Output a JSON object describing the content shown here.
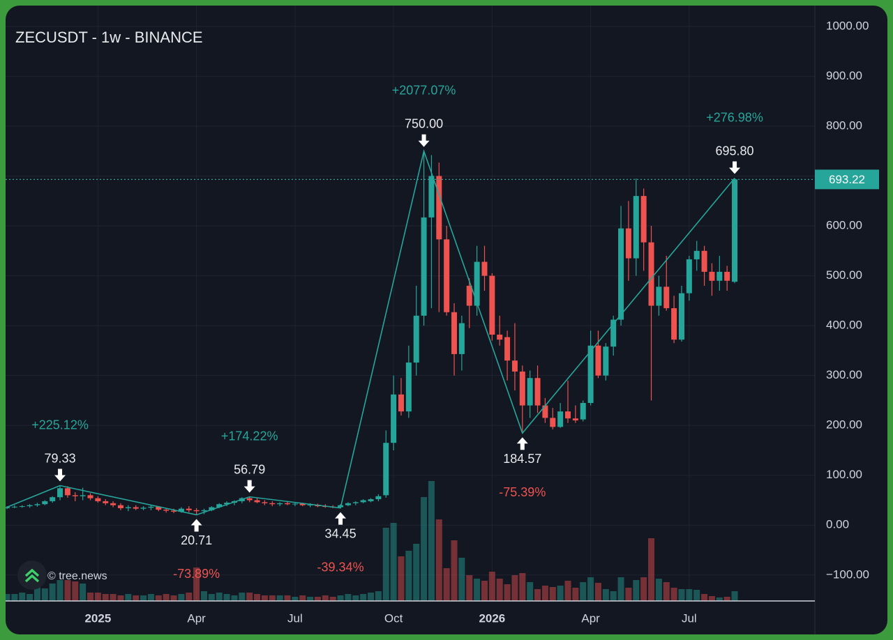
{
  "chart_data": {
    "type": "candlestick",
    "title": "ZECUSDT - 1w - BINANCE",
    "watermark": "© tree.news",
    "categories": [
      null,
      null,
      null,
      null,
      null,
      null,
      null,
      null,
      null,
      null,
      null,
      null,
      "2025",
      null,
      null,
      null,
      null,
      null,
      null,
      null,
      null,
      null,
      null,
      null,
      null,
      "Apr",
      null,
      null,
      null,
      null,
      null,
      null,
      null,
      null,
      null,
      null,
      null,
      null,
      "Jul",
      null,
      null,
      null,
      null,
      null,
      null,
      null,
      null,
      null,
      null,
      null,
      null,
      "Oct",
      null,
      null,
      null,
      null,
      null,
      null,
      null,
      null,
      null,
      null,
      null,
      null,
      "2026",
      null,
      null,
      null,
      null,
      null,
      null,
      null,
      null,
      null,
      null,
      null,
      null,
      "Apr",
      null,
      null,
      null,
      null,
      null,
      null,
      null,
      null,
      null,
      null,
      null,
      null,
      "Jul",
      null,
      null,
      null,
      null,
      null,
      null
    ],
    "open": [
      34,
      36,
      37,
      38,
      40,
      42,
      48,
      56,
      74,
      60,
      58,
      60,
      54,
      48,
      44,
      40,
      34,
      36,
      33,
      35,
      37,
      31,
      29,
      27,
      33,
      30,
      28,
      30,
      36,
      42,
      45,
      48,
      54,
      50,
      46,
      44,
      42,
      44,
      42,
      43,
      40,
      41,
      38,
      37,
      36,
      40,
      44,
      46,
      48,
      52,
      60,
      165,
      262,
      228,
      326,
      420,
      617,
      700,
      573,
      427,
      343,
      480,
      440,
      528,
      500,
      382,
      377,
      330,
      308,
      240,
      295,
      240,
      215,
      197,
      228,
      214,
      212,
      245,
      360,
      300,
      358,
      412,
      595,
      535,
      660,
      567,
      440,
      478,
      435,
      372,
      465,
      533,
      550,
      508,
      490,
      508,
      488
    ],
    "high": [
      38,
      40,
      40,
      42,
      45,
      50,
      58,
      79.33,
      78,
      66,
      75,
      64,
      58,
      52,
      48,
      44,
      40,
      40,
      38,
      40,
      38,
      34,
      33,
      36,
      38,
      34,
      33,
      38,
      44,
      48,
      50,
      56,
      56.79,
      54,
      50,
      48,
      46,
      47,
      45,
      45,
      44,
      43,
      42,
      40,
      42,
      46,
      48,
      52,
      54,
      62,
      190,
      300,
      295,
      360,
      480,
      750,
      742,
      727,
      600,
      445,
      420,
      495,
      560,
      560,
      505,
      420,
      390,
      405,
      320,
      310,
      320,
      255,
      235,
      245,
      290,
      240,
      250,
      390,
      390,
      365,
      420,
      640,
      650,
      695,
      675,
      600,
      500,
      540,
      460,
      480,
      540,
      570,
      560,
      525,
      540,
      520,
      695.8
    ],
    "low": [
      32,
      34,
      35,
      35,
      37,
      40,
      45,
      50,
      55,
      48,
      50,
      50,
      45,
      40,
      36,
      30,
      28,
      30,
      30,
      30,
      28,
      25,
      24,
      25,
      26,
      20.71,
      22,
      28,
      34,
      38,
      40,
      44,
      46,
      44,
      40,
      38,
      38,
      40,
      38,
      38,
      36,
      36,
      35,
      34,
      34.45,
      38,
      40,
      44,
      46,
      48,
      55,
      150,
      220,
      215,
      300,
      400,
      435,
      427,
      420,
      300,
      310,
      395,
      420,
      470,
      370,
      360,
      290,
      270,
      184.57,
      215,
      225,
      205,
      192,
      195,
      205,
      205,
      208,
      240,
      295,
      290,
      340,
      400,
      490,
      500,
      510,
      250,
      420,
      430,
      365,
      368,
      450,
      510,
      480,
      460,
      470,
      470,
      485
    ],
    "close": [
      36,
      37,
      38,
      40,
      42,
      48,
      56,
      74,
      60,
      58,
      60,
      54,
      48,
      44,
      40,
      34,
      36,
      33,
      35,
      37,
      31,
      29,
      27,
      33,
      30,
      28,
      30,
      36,
      42,
      45,
      48,
      54,
      50,
      46,
      44,
      42,
      44,
      42,
      43,
      40,
      41,
      38,
      37,
      36,
      40,
      44,
      46,
      50,
      52,
      58,
      165,
      262,
      228,
      326,
      420,
      617,
      700,
      573,
      427,
      343,
      405,
      440,
      528,
      500,
      382,
      372,
      330,
      308,
      240,
      295,
      240,
      215,
      197,
      228,
      214,
      210,
      245,
      360,
      300,
      358,
      412,
      595,
      535,
      660,
      567,
      440,
      478,
      435,
      372,
      465,
      533,
      550,
      508,
      490,
      508,
      490,
      693.22
    ],
    "volume": [
      10,
      10,
      12,
      10,
      20,
      18,
      25,
      30,
      30,
      28,
      25,
      12,
      12,
      10,
      10,
      8,
      10,
      8,
      8,
      10,
      8,
      10,
      8,
      10,
      12,
      48,
      14,
      10,
      12,
      10,
      8,
      12,
      12,
      10,
      8,
      8,
      8,
      8,
      6,
      8,
      6,
      6,
      8,
      6,
      8,
      10,
      8,
      10,
      12,
      14,
      105,
      112,
      64,
      72,
      82,
      149,
      172,
      117,
      47,
      87,
      62,
      37,
      32,
      29,
      42,
      32,
      24,
      37,
      40,
      27,
      17,
      22,
      20,
      22,
      29,
      19,
      27,
      34,
      26,
      17,
      14,
      34,
      19,
      30,
      34,
      90,
      32,
      27,
      19,
      17,
      17,
      16,
      10,
      7,
      5,
      6,
      14
    ],
    "up_color": "#26a69a",
    "down_color": "#ef5350",
    "ylim": [
      -152,
      1032
    ],
    "yticks": [
      {
        "value": -100,
        "label": "−100.00"
      },
      {
        "value": 0,
        "label": "0.00"
      },
      {
        "value": 100,
        "label": "100.00"
      },
      {
        "value": 200,
        "label": "200.00"
      },
      {
        "value": 300,
        "label": "300.00"
      },
      {
        "value": 400,
        "label": "400.00"
      },
      {
        "value": 500,
        "label": "500.00"
      },
      {
        "value": 600,
        "label": "600.00"
      },
      {
        "value": 700,
        "label": "700.00"
      },
      {
        "value": 800,
        "label": "800.00"
      },
      {
        "value": 900,
        "label": "900.00"
      },
      {
        "value": 1000,
        "label": "1000.00"
      }
    ],
    "grid": true,
    "last_price": {
      "value": 693.22,
      "label": "693.22"
    },
    "pivots": [
      {
        "index": 7,
        "kind": "high",
        "value": 79.33,
        "label": "79.33",
        "change": 225.12,
        "change_label": "+225.12%"
      },
      {
        "index": 25,
        "kind": "low",
        "value": 20.71,
        "label": "20.71",
        "change": -73.89,
        "change_label": "-73.89%"
      },
      {
        "index": 32,
        "kind": "high",
        "value": 56.79,
        "label": "56.79",
        "change": 174.22,
        "change_label": "+174.22%"
      },
      {
        "index": 44,
        "kind": "low",
        "value": 34.45,
        "label": "34.45",
        "change": -39.34,
        "change_label": "-39.34%"
      },
      {
        "index": 55,
        "kind": "high",
        "value": 750,
        "label": "750.00",
        "change": 2077.07,
        "change_label": "+2077.07%"
      },
      {
        "index": 68,
        "kind": "low",
        "value": 184.57,
        "label": "184.57",
        "change": -75.39,
        "change_label": "-75.39%"
      },
      {
        "index": 96,
        "kind": "high",
        "value": 695.8,
        "label": "695.80",
        "change": 276.98,
        "change_label": "+276.98%"
      }
    ]
  }
}
